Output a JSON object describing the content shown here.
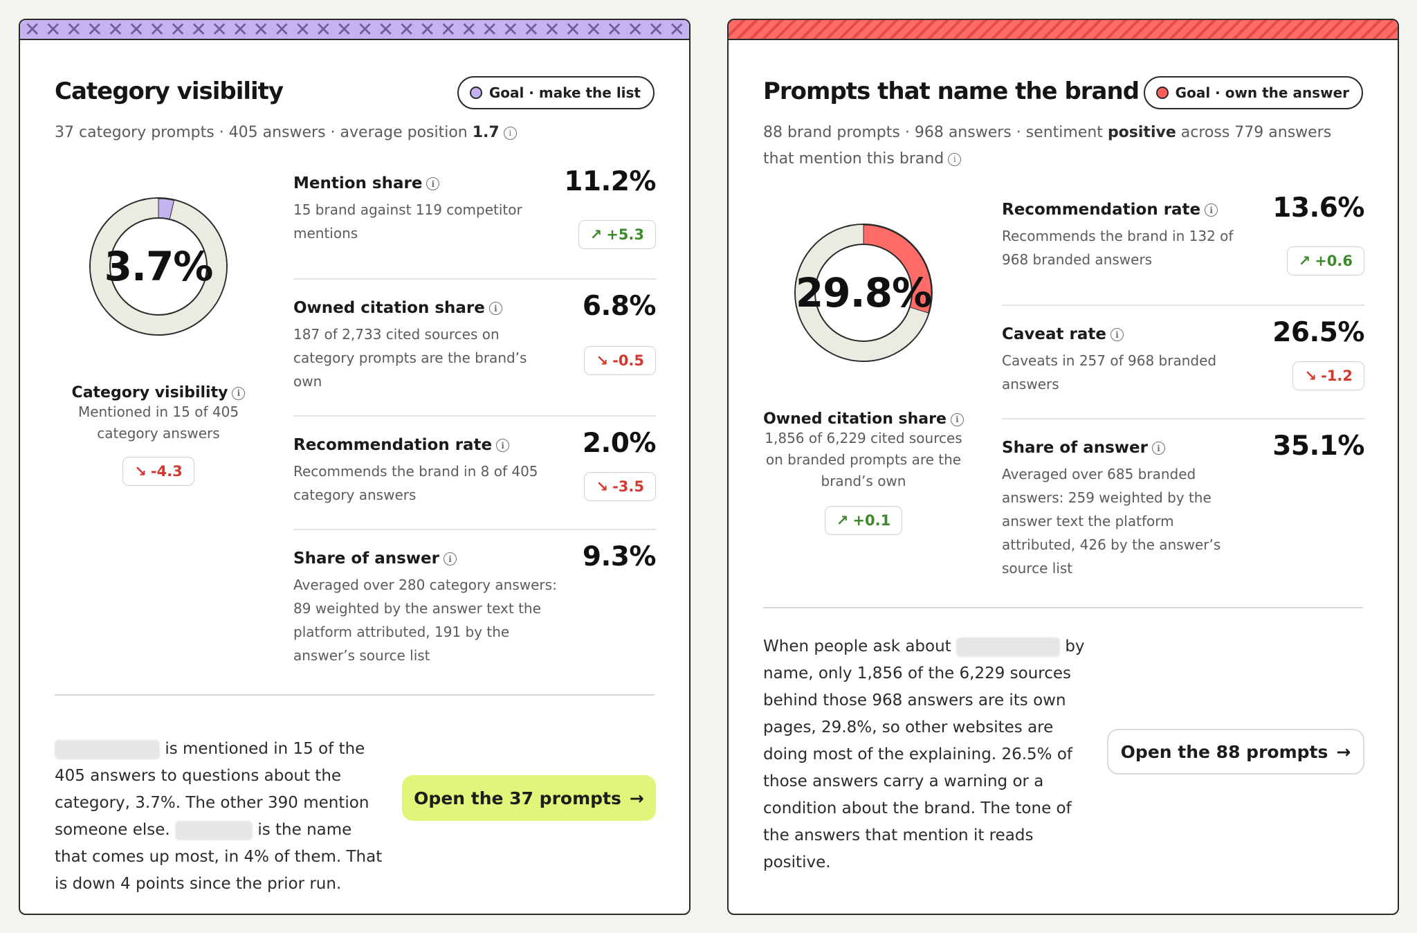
{
  "colors": {
    "background": "#f4f4ee",
    "purple_accent": "#c5b2f1",
    "red_accent": "#ff6b66",
    "lime_button": "#e2f57b",
    "up_green": "#3d8a2c",
    "down_red": "#d2392f"
  },
  "left_card": {
    "title": "Category visibility",
    "goal": "Goal · make the list",
    "subtitle": "37 category prompts · 405 answers · average position",
    "subtitle_value": "1.7",
    "donut": {
      "value_text": "3.7%",
      "fraction": 0.037,
      "label": "Category visibility",
      "desc_line1": "Mentioned in 15 of 405",
      "desc_line2": "category answers",
      "delta": "-4.3",
      "delta_dir": "down"
    },
    "metrics": [
      {
        "name": "Mention share",
        "value": "11.2%",
        "desc_lines": [
          "15 brand against 119 competitor",
          "mentions"
        ],
        "delta": "+5.3",
        "delta_dir": "up"
      },
      {
        "name": "Owned citation share",
        "value": "6.8%",
        "desc_lines": [
          "187 of 2,733 cited sources on",
          "category prompts are the brand’s",
          "own"
        ],
        "delta": "-0.5",
        "delta_dir": "down"
      },
      {
        "name": "Recommendation rate",
        "value": "2.0%",
        "desc_lines": [
          "Recommends the brand in 8 of 405",
          "category answers"
        ],
        "delta": "-3.5",
        "delta_dir": "down"
      },
      {
        "name": "Share of answer",
        "value": "9.3%",
        "desc_lines": [
          "Averaged over 280 category answers:",
          "89 weighted by the answer text the",
          "platform attributed, 191 by the",
          "answer’s source list"
        ],
        "delta": null,
        "delta_dir": null
      }
    ],
    "footer": {
      "line1": "is mentioned in 15 of the",
      "line2": "405 answers to questions about the",
      "line3": "category, 3.7%. The other 390 mention",
      "line4a": "someone else.",
      "line4b": "is the name",
      "line5": "that comes up most, in 4% of them. That",
      "line6": "is down 4 points since the prior run."
    },
    "cta": "Open the 37 prompts",
    "cta_arrow": "→"
  },
  "right_card": {
    "title": "Prompts that name the brand",
    "goal": "Goal · own the answer",
    "subtitle_a": "88 brand prompts · 968 answers · sentiment",
    "subtitle_bold": "positive",
    "subtitle_b": "across 779 answers",
    "subtitle_line2": "that mention this brand",
    "donut": {
      "value_text": "29.8%",
      "fraction": 0.298,
      "label": "Owned citation share",
      "desc_line1": "1,856 of 6,229 cited sources",
      "desc_line2": "on branded prompts are the",
      "desc_line3": "brand’s own",
      "delta": "+0.1",
      "delta_dir": "up"
    },
    "metrics": [
      {
        "name": "Recommendation rate",
        "value": "13.6%",
        "desc_lines": [
          "Recommends the brand in 132 of",
          "968 branded answers"
        ],
        "delta": "+0.6",
        "delta_dir": "up"
      },
      {
        "name": "Caveat rate",
        "value": "26.5%",
        "desc_lines": [
          "Caveats in 257 of 968 branded",
          "answers"
        ],
        "delta": "-1.2",
        "delta_dir": "down"
      },
      {
        "name": "Share of answer",
        "value": "35.1%",
        "desc_lines": [
          "Averaged over 685 branded",
          "answers: 259 weighted by the",
          "answer text the platform",
          "attributed, 426 by the answer’s",
          "source list"
        ],
        "delta": null,
        "delta_dir": null
      }
    ],
    "footer": {
      "line1a": "When people ask about",
      "line1b": "by",
      "line2": "name, only 1,856 of the 6,229 sources",
      "line3": "behind those 968 answers are its own",
      "line4": "pages, 29.8%, so other websites are",
      "line5": "doing most of the explaining. 26.5% of",
      "line6": "those answers carry a warning or a",
      "line7": "condition about the brand. The tone of",
      "line8": "the answers that mention it reads",
      "line9": "positive."
    },
    "cta": "Open the 88 prompts",
    "cta_arrow": "→"
  },
  "icons": {
    "info": "info-icon",
    "arrow_up": "arrow-up-right-icon",
    "arrow_down": "arrow-down-right-icon",
    "arrow_right": "arrow-right-icon"
  }
}
